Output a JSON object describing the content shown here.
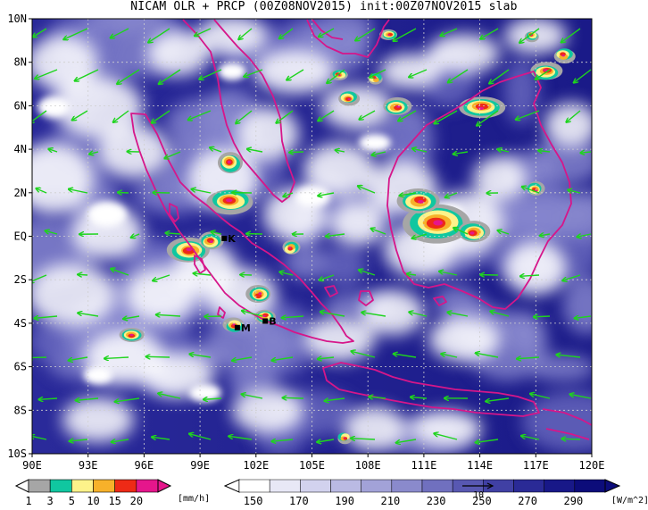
{
  "title": "NICAM OLR + PRCP (00Z08NOV2015) init:00Z07NOV2015 slab",
  "map": {
    "lon_range": [
      90,
      120
    ],
    "lat_range": [
      -10,
      10
    ],
    "lat_labels": [
      {
        "lat": 10,
        "text": "10N"
      },
      {
        "lat": 8,
        "text": "8N"
      },
      {
        "lat": 6,
        "text": "6N"
      },
      {
        "lat": 4,
        "text": "4N"
      },
      {
        "lat": 2,
        "text": "2N"
      },
      {
        "lat": 0,
        "text": "EQ"
      },
      {
        "lat": -2,
        "text": "2S"
      },
      {
        "lat": -4,
        "text": "4S"
      },
      {
        "lat": -6,
        "text": "6S"
      },
      {
        "lat": -8,
        "text": "8S"
      },
      {
        "lat": -10,
        "text": "10S"
      }
    ],
    "lon_labels": [
      {
        "lon": 90,
        "text": "90E"
      },
      {
        "lon": 93,
        "text": "93E"
      },
      {
        "lon": 96,
        "text": "96E"
      },
      {
        "lon": 99,
        "text": "99E"
      },
      {
        "lon": 102,
        "text": "102E"
      },
      {
        "lon": 105,
        "text": "105E"
      },
      {
        "lon": 108,
        "text": "108E"
      },
      {
        "lon": 111,
        "text": "111E"
      },
      {
        "lon": 114,
        "text": "114E"
      },
      {
        "lon": 117,
        "text": "117E"
      },
      {
        "lon": 120,
        "text": "120E"
      }
    ],
    "markers": [
      {
        "text": "K",
        "lon": 100.3,
        "lat": -0.1
      },
      {
        "text": "M",
        "lon": 101.0,
        "lat": -4.2
      },
      {
        "text": "B",
        "lon": 102.5,
        "lat": -3.9
      }
    ]
  },
  "prcp_colorbar": {
    "ticks": [
      "1",
      "3",
      "5",
      "10",
      "15",
      "20"
    ],
    "colors": [
      "#a6a6a6",
      "#10c7a0",
      "#fdf28a",
      "#f7b12a",
      "#ee2a16",
      "#e5168c"
    ],
    "unit": "[mm/h]"
  },
  "olr_colorbar": {
    "ticks": [
      "150",
      "170",
      "190",
      "210",
      "230",
      "250",
      "270",
      "290"
    ],
    "colors": [
      "#ffffff",
      "#e8e8f6",
      "#d2d2ee",
      "#babae3",
      "#a2a2d8",
      "#8a8acc",
      "#7070bf",
      "#5858b2",
      "#4040a4",
      "#2a2a96",
      "#181888",
      "#0c0c7a"
    ],
    "unit": "[W/m^2]",
    "vector_ref": "10"
  },
  "colors": {
    "coast": "#d6168a",
    "vector": "#1ed41e",
    "ocean_deep": "#20208e",
    "ocean_mid": "#3a3aa6",
    "cloud": "#ffffff"
  }
}
